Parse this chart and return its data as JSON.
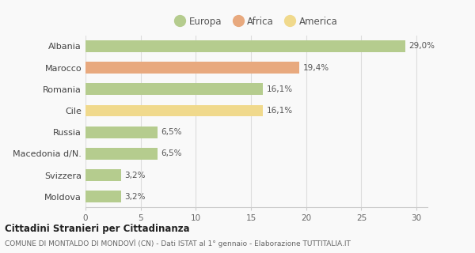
{
  "categories": [
    "Albania",
    "Marocco",
    "Romania",
    "Cile",
    "Russia",
    "Macedonia d/N.",
    "Svizzera",
    "Moldova"
  ],
  "values": [
    29.0,
    19.4,
    16.1,
    16.1,
    6.5,
    6.5,
    3.2,
    3.2
  ],
  "labels": [
    "29,0%",
    "19,4%",
    "16,1%",
    "16,1%",
    "6,5%",
    "6,5%",
    "3,2%",
    "3,2%"
  ],
  "colors": [
    "#b5cc8e",
    "#e8a97e",
    "#b5cc8e",
    "#f0d98c",
    "#b5cc8e",
    "#b5cc8e",
    "#b5cc8e",
    "#b5cc8e"
  ],
  "legend": [
    {
      "label": "Europa",
      "color": "#b5cc8e"
    },
    {
      "label": "Africa",
      "color": "#e8a97e"
    },
    {
      "label": "America",
      "color": "#f0d98c"
    }
  ],
  "xlim": [
    0,
    31
  ],
  "xticks": [
    0,
    5,
    10,
    15,
    20,
    25,
    30
  ],
  "title_main": "Cittadini Stranieri per Cittadinanza",
  "title_sub": "COMUNE DI MONTALDO DI MONDOVÌ (CN) - Dati ISTAT al 1° gennaio - Elaborazione TUTTITALIA.IT",
  "background_color": "#f9f9f9",
  "bar_height": 0.55
}
